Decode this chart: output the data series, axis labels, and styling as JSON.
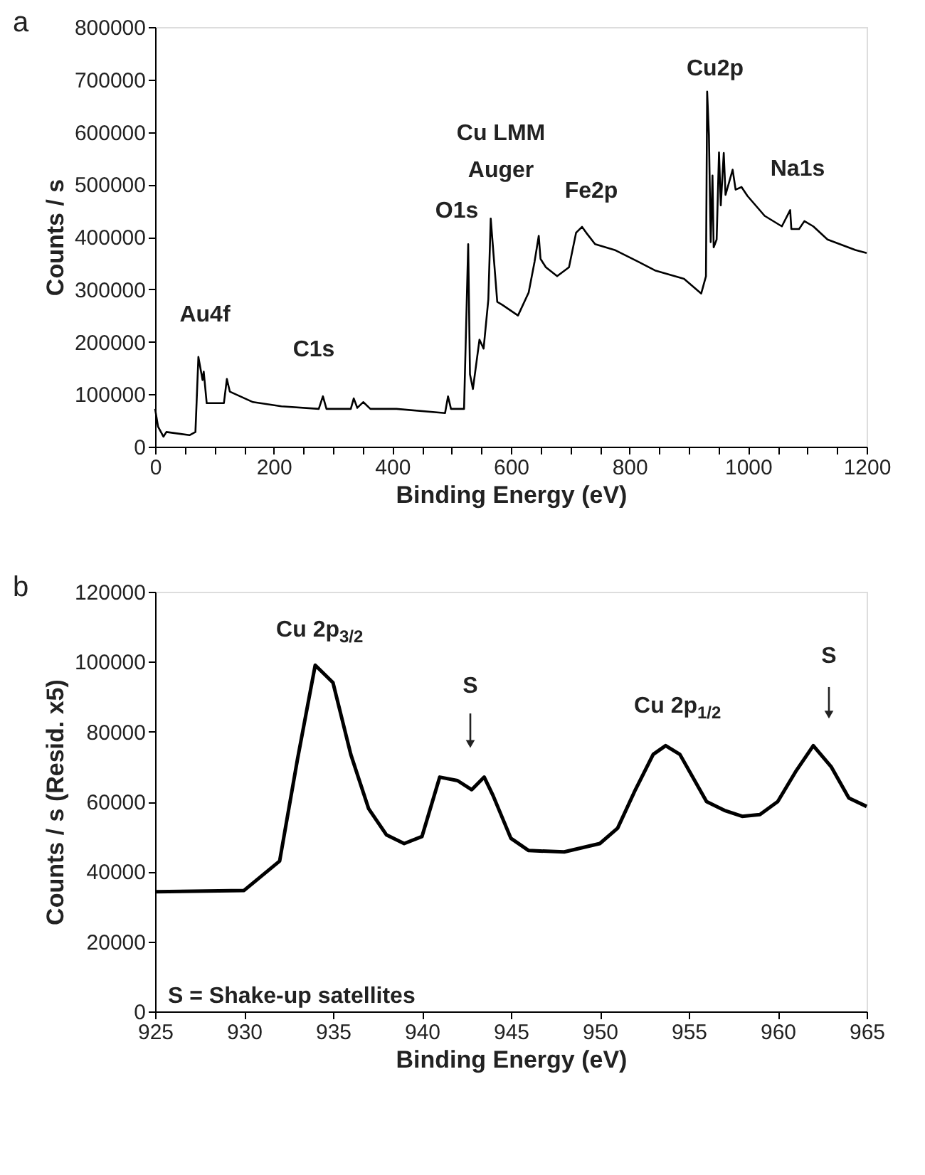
{
  "chart_data": [
    {
      "type": "line",
      "title": "a",
      "xlabel": "Binding Energy (eV)",
      "ylabel": "Counts / s",
      "xlim": [
        0,
        1200
      ],
      "ylim": [
        0,
        800000
      ],
      "xticks": [
        0,
        {
          "value": 50,
          "label": null
        },
        {
          "value": 100,
          "label": null
        },
        {
          "value": 150,
          "label": null
        },
        200,
        {
          "value": 250,
          "label": null
        },
        {
          "value": 300,
          "label": null
        },
        {
          "value": 350,
          "label": null
        },
        400,
        {
          "value": 450,
          "label": null
        },
        {
          "value": 500,
          "label": null
        },
        {
          "value": 550,
          "label": null
        },
        600,
        {
          "value": 650,
          "label": null
        },
        {
          "value": 700,
          "label": null
        },
        {
          "value": 750,
          "label": null
        },
        800,
        {
          "value": 850,
          "label": null
        },
        {
          "value": 900,
          "label": null
        },
        {
          "value": 950,
          "label": null
        },
        1000,
        {
          "value": 1050,
          "label": null
        },
        {
          "value": 1100,
          "label": null
        },
        {
          "value": 1150,
          "label": null
        },
        1200
      ],
      "yticks": [
        0,
        100000,
        200000,
        300000,
        400000,
        500000,
        600000,
        700000,
        800000
      ],
      "grid": false,
      "line_style": "solid",
      "marker": "none",
      "series": [
        {
          "color": "#000000",
          "x": [
            0,
            5,
            14,
            19,
            58,
            68,
            73,
            80,
            82,
            87,
            116,
            121,
            126,
            165,
            213,
            276,
            283,
            289,
            330,
            335,
            341,
            351,
            363,
            407,
            489,
            494,
            499,
            521,
            528,
            531,
            536,
            547,
            554,
            562,
            566,
            577,
            586,
            612,
            630,
            640,
            647,
            650,
            659,
            678,
            698,
            710,
            720,
            727,
            742,
            775,
            814,
            843,
            892,
            921,
            929,
            931,
            934,
            937,
            940,
            942,
            947,
            951,
            954,
            959,
            962,
            974,
            979,
            989,
            999,
            1028,
            1057,
            1071,
            1073,
            1086,
            1095,
            1110,
            1134,
            1181,
            1200
          ],
          "values": [
            72000,
            38000,
            19000,
            28000,
            22000,
            28000,
            171000,
            127000,
            143000,
            83000,
            83000,
            129000,
            105000,
            85000,
            77000,
            72000,
            96000,
            72000,
            72000,
            92000,
            74000,
            85000,
            72000,
            72000,
            64000,
            96000,
            72000,
            72000,
            386000,
            138000,
            110000,
            204000,
            187000,
            281000,
            435000,
            276000,
            270000,
            250000,
            294000,
            353000,
            402000,
            358000,
            342000,
            325000,
            342000,
            408000,
            419000,
            408000,
            386000,
            375000,
            353000,
            336000,
            320000,
            292000,
            325000,
            677000,
            594000,
            390000,
            517000,
            380000,
            395000,
            561000,
            460000,
            560000,
            480000,
            528000,
            490000,
            495000,
            478000,
            440000,
            420000,
            451000,
            415000,
            415000,
            430000,
            420000,
            395000,
            375000,
            369000
          ]
        }
      ],
      "annotations": [
        "Au4f",
        "C1s",
        "O1s",
        "Cu LMM\nAuger",
        "Fe2p",
        "Cu2p",
        "Na1s"
      ]
    },
    {
      "type": "line",
      "title": "b",
      "xlabel": "Binding Energy (eV)",
      "ylabel": "Counts / s (Resid. x5)",
      "xlim": [
        925,
        965
      ],
      "ylim": [
        0,
        120000
      ],
      "xticks": [
        925,
        930,
        935,
        940,
        945,
        950,
        955,
        960,
        965
      ],
      "yticks": [
        0,
        20000,
        40000,
        60000,
        80000,
        100000,
        120000
      ],
      "grid": false,
      "line_style": "solid",
      "marker": "none",
      "series": [
        {
          "color": "#000000",
          "x": [
            925,
            930,
            932,
            933,
            934,
            935,
            936,
            937,
            938,
            939,
            940,
            941,
            942,
            942.8,
            943.5,
            944,
            945,
            946,
            948,
            950,
            951,
            952,
            953,
            953.7,
            954.5,
            956,
            957,
            958,
            959,
            960,
            961,
            962,
            963,
            964,
            965
          ],
          "values": [
            34200,
            34600,
            43000,
            72000,
            99000,
            94000,
            73500,
            58000,
            50500,
            48000,
            50000,
            67000,
            66000,
            63400,
            67000,
            61700,
            49500,
            46000,
            45600,
            48000,
            52400,
            63400,
            73500,
            76000,
            73500,
            60000,
            57500,
            55800,
            56300,
            60000,
            68500,
            76000,
            70000,
            61000,
            58600
          ]
        }
      ],
      "annotations": [
        "Cu 2p$_{3/2}$",
        "S",
        "Cu 2p$_{1/2}$",
        "S",
        "S = Shake-up satellites"
      ]
    }
  ]
}
